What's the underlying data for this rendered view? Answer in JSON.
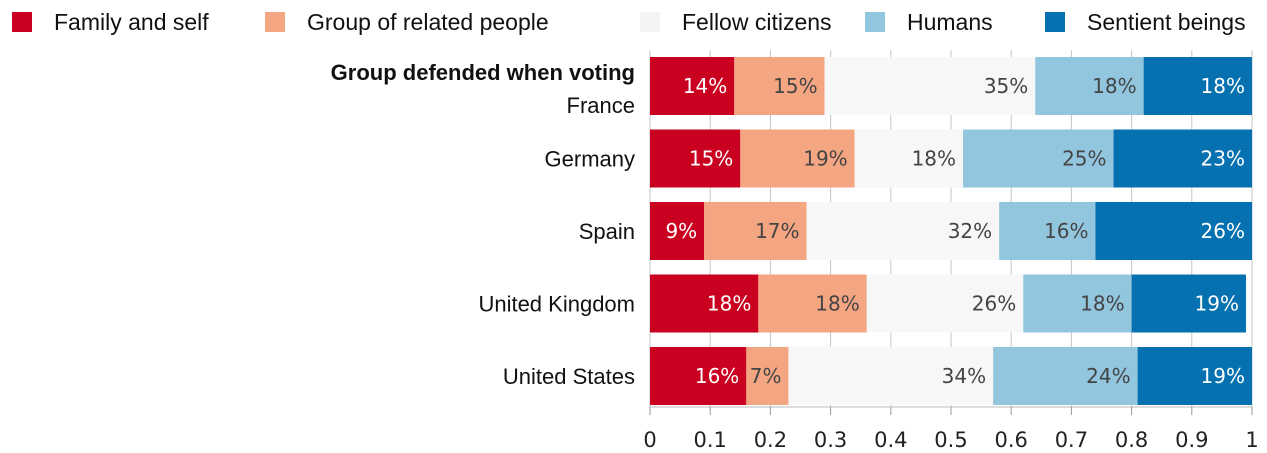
{
  "chart_data": {
    "type": "bar",
    "orientation": "horizontal",
    "stacked": true,
    "y_title": "Group defended when voting",
    "categories": [
      "France",
      "Germany",
      "Spain",
      "United Kingdom",
      "United States"
    ],
    "series": [
      {
        "name": "Family and self",
        "color": "#ca0020",
        "label_color": "#ffffff",
        "values": [
          0.14,
          0.15,
          0.09,
          0.18,
          0.16
        ],
        "labels": [
          "14%",
          "15%",
          "9%",
          "18%",
          "16%"
        ]
      },
      {
        "name": "Group of related people",
        "color": "#f4a582",
        "label_color": "#444444",
        "values": [
          0.15,
          0.19,
          0.17,
          0.18,
          0.07
        ],
        "labels": [
          "15%",
          "19%",
          "17%",
          "18%",
          "7%"
        ]
      },
      {
        "name": "Fellow citizens",
        "color": "#f7f7f7",
        "label_color": "#444444",
        "values": [
          0.35,
          0.18,
          0.32,
          0.26,
          0.34
        ],
        "labels": [
          "35%",
          "18%",
          "32%",
          "26%",
          "34%"
        ]
      },
      {
        "name": "Humans",
        "color": "#92c5de",
        "label_color": "#444444",
        "values": [
          0.18,
          0.25,
          0.16,
          0.18,
          0.24
        ],
        "labels": [
          "18%",
          "25%",
          "16%",
          "18%",
          "24%"
        ]
      },
      {
        "name": "Sentient beings",
        "color": "#0571b0",
        "label_color": "#ffffff",
        "values": [
          0.18,
          0.23,
          0.26,
          0.19,
          0.19
        ],
        "labels": [
          "18%",
          "23%",
          "26%",
          "19%",
          "19%"
        ]
      }
    ],
    "xlim": [
      0,
      1
    ],
    "xticks": [
      0,
      0.1,
      0.2,
      0.3,
      0.4,
      0.5,
      0.6,
      0.7,
      0.8,
      0.9,
      1
    ],
    "xtick_labels": [
      "0",
      "0.1",
      "0.2",
      "0.3",
      "0.4",
      "0.5",
      "0.6",
      "0.7",
      "0.8",
      "0.9",
      "1"
    ],
    "grid": true,
    "legend_position": "top"
  }
}
